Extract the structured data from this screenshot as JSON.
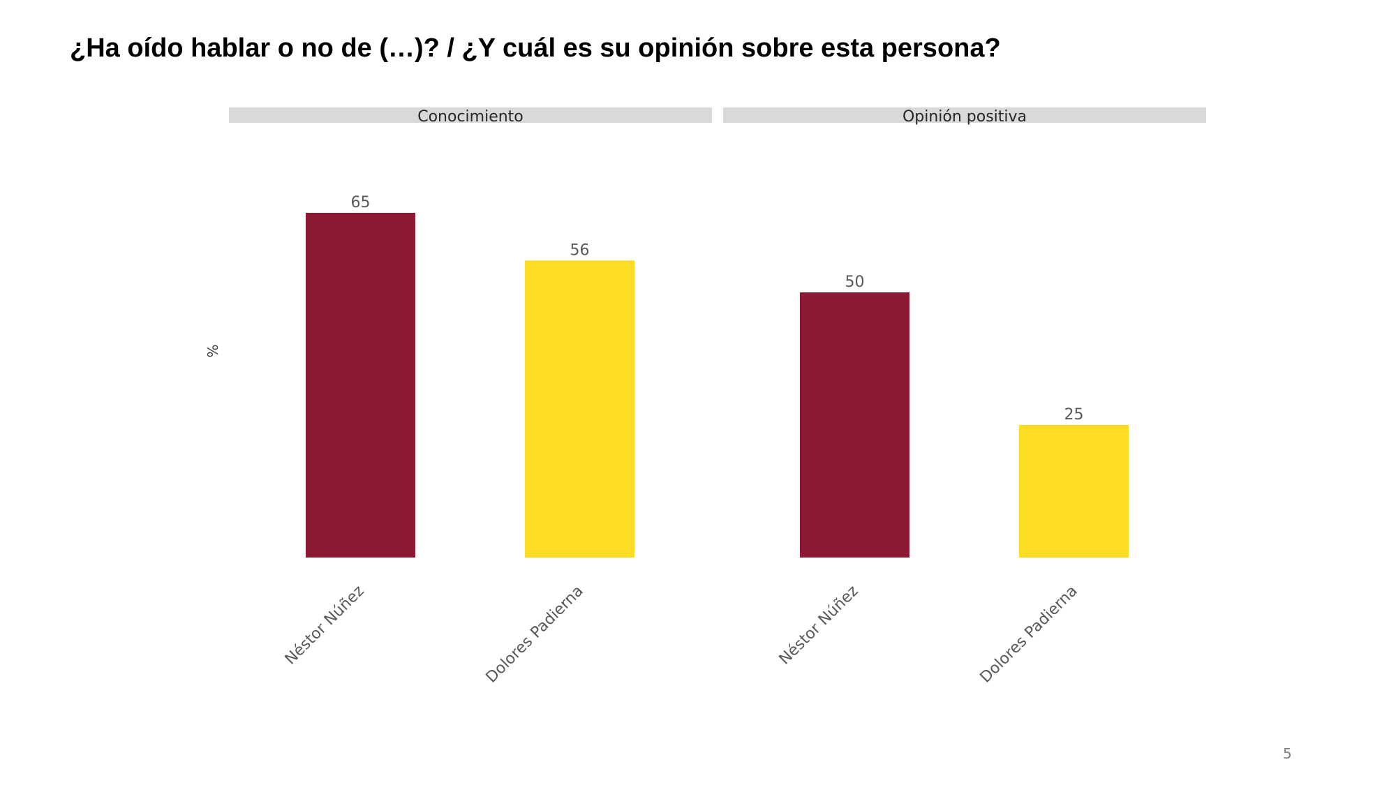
{
  "title": "¿Ha oído hablar o no de (…)? / ¿Y cuál es su opinión sobre esta persona?",
  "page_number": "5",
  "colors": {
    "nestor": "#8d1932",
    "dolores": "#fddd24",
    "panel_header": "#d9d9d9",
    "label_text": "#595959"
  },
  "chart_data": {
    "type": "bar",
    "ylabel": "%",
    "ylim": [
      0,
      65
    ],
    "categories": [
      "Néstor Núñez",
      "Dolores Padierna"
    ],
    "panels": [
      {
        "title": "Conocimiento",
        "values": [
          65,
          56
        ]
      },
      {
        "title": "Opinión positiva",
        "values": [
          50,
          25
        ]
      }
    ],
    "bar_colors": [
      "#8d1932",
      "#fddd24"
    ]
  }
}
